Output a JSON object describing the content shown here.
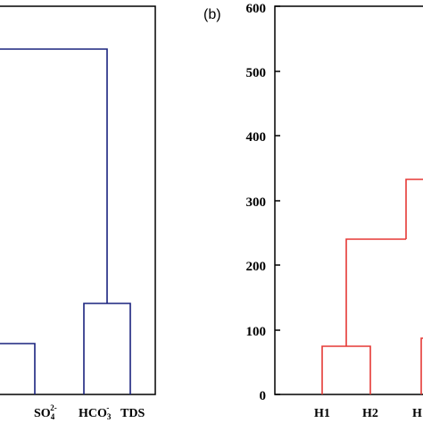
{
  "panel_a": {
    "link_color": "#1a237e",
    "leaves": [
      {
        "label": "SO",
        "sub": "4",
        "sup": "2-"
      },
      {
        "label": "HCO",
        "sub": "3",
        "sup": "-"
      },
      {
        "label": "TDS",
        "sub": "",
        "sup": ""
      }
    ]
  },
  "panel_b": {
    "label": "(b)",
    "link_color": "#e53935",
    "y_ticks": [
      "0",
      "100",
      "200",
      "300",
      "400",
      "500",
      "600"
    ],
    "leaves": [
      {
        "label": "H1"
      },
      {
        "label": "H2"
      },
      {
        "label": "H"
      }
    ]
  },
  "chart_data": {
    "type": "dendrogram",
    "panels": [
      {
        "panel": "a",
        "leaves": [
          "SO4 2-",
          "HCO3 -",
          "TDS"
        ],
        "merges": [
          {
            "members": [
              "HCO3 -",
              "TDS"
            ],
            "height_fraction": 0.26
          },
          {
            "members": [
              "left cluster",
              "HCO3 -/TDS cluster"
            ],
            "height_fraction": 0.82
          }
        ]
      },
      {
        "panel": "b",
        "ylim": [
          0,
          600
        ],
        "yticks": [
          0,
          100,
          200,
          300,
          400,
          500,
          600
        ],
        "leaves": [
          "H1",
          "H2",
          "H"
        ],
        "merges": [
          {
            "members": [
              "H1",
              "H2"
            ],
            "height": 75
          },
          {
            "members": [
              "H1-H2",
              "right cluster"
            ],
            "height": 240
          },
          {
            "members": [
              "cluster",
              "right cluster"
            ],
            "height": 333
          },
          {
            "members": [
              "H",
              "right"
            ],
            "height": 87
          }
        ]
      }
    ]
  }
}
